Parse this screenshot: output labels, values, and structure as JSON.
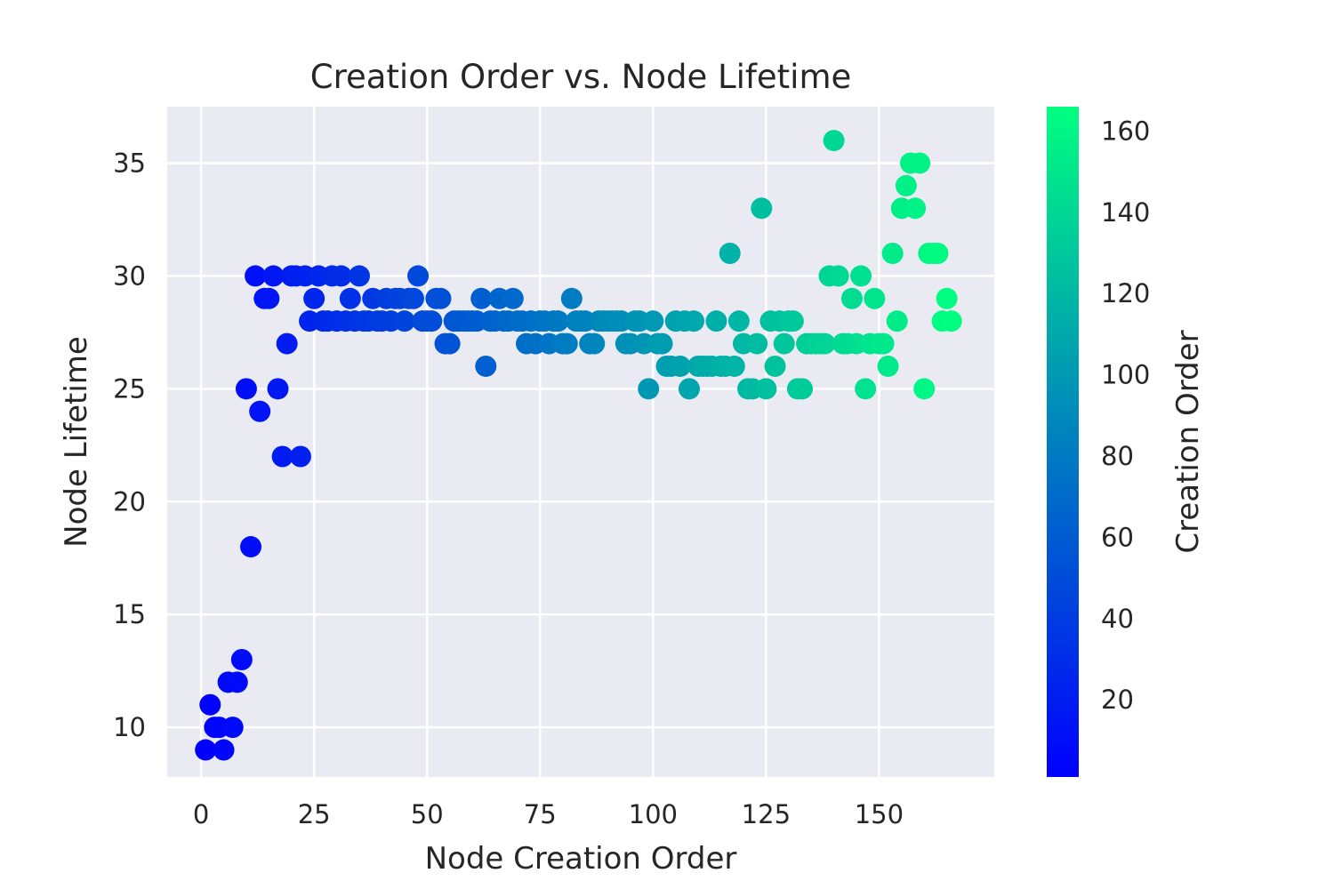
{
  "chart_data": {
    "type": "scatter",
    "title": "Creation Order vs. Node Lifetime",
    "xlabel": "Node Creation Order",
    "ylabel": "Node Lifetime",
    "xlim": [
      -7.5,
      175.5
    ],
    "ylim": [
      7.8,
      37.5
    ],
    "xticks": [
      0,
      25,
      50,
      75,
      100,
      125,
      150
    ],
    "yticks": [
      10,
      15,
      20,
      25,
      30,
      35
    ],
    "grid": true,
    "colormap": "winter",
    "colorbar": {
      "label": "Creation Order",
      "range": [
        1,
        166
      ],
      "ticks": [
        20,
        40,
        60,
        80,
        100,
        120,
        140,
        160
      ],
      "color_low": "#0000ff",
      "color_high": "#00ff80"
    },
    "colors": {
      "plot_background": "#eaeaf2",
      "grid": "#ffffff",
      "text": "#262626"
    },
    "points": [
      [
        1,
        9
      ],
      [
        2,
        11
      ],
      [
        3,
        10
      ],
      [
        4,
        10
      ],
      [
        5,
        9
      ],
      [
        6,
        12
      ],
      [
        7,
        10
      ],
      [
        8,
        12
      ],
      [
        9,
        13
      ],
      [
        10,
        25
      ],
      [
        11,
        18
      ],
      [
        12,
        30
      ],
      [
        13,
        24
      ],
      [
        14,
        29
      ],
      [
        15,
        29
      ],
      [
        16,
        30
      ],
      [
        17,
        25
      ],
      [
        18,
        22
      ],
      [
        19,
        27
      ],
      [
        20,
        30
      ],
      [
        21,
        30
      ],
      [
        22,
        22
      ],
      [
        23,
        30
      ],
      [
        24,
        28
      ],
      [
        25,
        29
      ],
      [
        26,
        30
      ],
      [
        27,
        28
      ],
      [
        28,
        28
      ],
      [
        29,
        30
      ],
      [
        30,
        28
      ],
      [
        31,
        30
      ],
      [
        32,
        28
      ],
      [
        33,
        29
      ],
      [
        34,
        28
      ],
      [
        35,
        30
      ],
      [
        36,
        28
      ],
      [
        37,
        28
      ],
      [
        38,
        29
      ],
      [
        39,
        28
      ],
      [
        40,
        28
      ],
      [
        41,
        29
      ],
      [
        42,
        28
      ],
      [
        43,
        29
      ],
      [
        44,
        29
      ],
      [
        45,
        28
      ],
      [
        46,
        29
      ],
      [
        47,
        29
      ],
      [
        48,
        30
      ],
      [
        49,
        28
      ],
      [
        50,
        28
      ],
      [
        51,
        28
      ],
      [
        52,
        29
      ],
      [
        53,
        29
      ],
      [
        54,
        27
      ],
      [
        55,
        27
      ],
      [
        56,
        28
      ],
      [
        57,
        28
      ],
      [
        58,
        28
      ],
      [
        59,
        28
      ],
      [
        60,
        28
      ],
      [
        61,
        28
      ],
      [
        62,
        29
      ],
      [
        63,
        26
      ],
      [
        64,
        28
      ],
      [
        65,
        28
      ],
      [
        66,
        29
      ],
      [
        67,
        28
      ],
      [
        68,
        28
      ],
      [
        69,
        29
      ],
      [
        70,
        28
      ],
      [
        71,
        28
      ],
      [
        72,
        27
      ],
      [
        73,
        28
      ],
      [
        74,
        27
      ],
      [
        75,
        28
      ],
      [
        76,
        28
      ],
      [
        77,
        27
      ],
      [
        78,
        28
      ],
      [
        79,
        28
      ],
      [
        80,
        27
      ],
      [
        81,
        27
      ],
      [
        82,
        29
      ],
      [
        83,
        28
      ],
      [
        84,
        28
      ],
      [
        85,
        28
      ],
      [
        86,
        27
      ],
      [
        87,
        27
      ],
      [
        88,
        28
      ],
      [
        89,
        28
      ],
      [
        90,
        28
      ],
      [
        91,
        28
      ],
      [
        92,
        28
      ],
      [
        93,
        28
      ],
      [
        94,
        27
      ],
      [
        95,
        27
      ],
      [
        96,
        28
      ],
      [
        97,
        28
      ],
      [
        98,
        27
      ],
      [
        99,
        25
      ],
      [
        100,
        28
      ],
      [
        101,
        27
      ],
      [
        102,
        27
      ],
      [
        103,
        26
      ],
      [
        104,
        26
      ],
      [
        105,
        28
      ],
      [
        106,
        26
      ],
      [
        107,
        28
      ],
      [
        108,
        25
      ],
      [
        109,
        28
      ],
      [
        110,
        26
      ],
      [
        111,
        26
      ],
      [
        112,
        26
      ],
      [
        113,
        26
      ],
      [
        114,
        28
      ],
      [
        115,
        26
      ],
      [
        116,
        26
      ],
      [
        117,
        31
      ],
      [
        118,
        26
      ],
      [
        119,
        28
      ],
      [
        120,
        27
      ],
      [
        121,
        25
      ],
      [
        122,
        25
      ],
      [
        123,
        27
      ],
      [
        124,
        33
      ],
      [
        125,
        25
      ],
      [
        126,
        28
      ],
      [
        127,
        26
      ],
      [
        128,
        28
      ],
      [
        129,
        27
      ],
      [
        130,
        28
      ],
      [
        131,
        28
      ],
      [
        132,
        25
      ],
      [
        133,
        25
      ],
      [
        134,
        27
      ],
      [
        135,
        27
      ],
      [
        136,
        27
      ],
      [
        137,
        27
      ],
      [
        138,
        27
      ],
      [
        139,
        30
      ],
      [
        140,
        36
      ],
      [
        141,
        30
      ],
      [
        142,
        27
      ],
      [
        143,
        27
      ],
      [
        144,
        29
      ],
      [
        145,
        27
      ],
      [
        146,
        30
      ],
      [
        147,
        25
      ],
      [
        148,
        27
      ],
      [
        149,
        29
      ],
      [
        150,
        27
      ],
      [
        151,
        27
      ],
      [
        152,
        26
      ],
      [
        153,
        31
      ],
      [
        154,
        28
      ],
      [
        155,
        33
      ],
      [
        156,
        34
      ],
      [
        157,
        35
      ],
      [
        158,
        33
      ],
      [
        159,
        35
      ],
      [
        160,
        25
      ],
      [
        161,
        31
      ],
      [
        162,
        31
      ],
      [
        163,
        31
      ],
      [
        164,
        28
      ],
      [
        165,
        29
      ],
      [
        166,
        28
      ]
    ]
  }
}
